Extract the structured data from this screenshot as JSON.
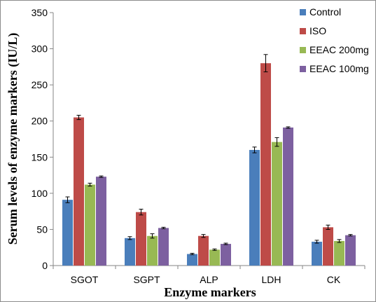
{
  "chart_data": {
    "type": "bar",
    "categories": [
      "SGOT",
      "SGPT",
      "ALP",
      "LDH",
      "CK"
    ],
    "series": [
      {
        "name": "Control",
        "color": "#4a7ebb",
        "values": [
          91,
          38,
          16,
          160,
          33
        ],
        "errors": [
          4,
          2,
          1,
          4,
          2
        ]
      },
      {
        "name": "ISO",
        "color": "#be4b48",
        "values": [
          205,
          74,
          41,
          280,
          53
        ],
        "errors": [
          3,
          4,
          2,
          12,
          3
        ]
      },
      {
        "name": "EEAC 200mg",
        "color": "#98b954",
        "values": [
          112,
          41,
          22,
          171,
          34
        ],
        "errors": [
          2,
          3,
          1,
          6,
          2
        ]
      },
      {
        "name": "EEAC 100mg",
        "color": "#7d60a0",
        "values": [
          123,
          52,
          30,
          191,
          42
        ],
        "errors": [
          1,
          1,
          1,
          1,
          1
        ]
      }
    ],
    "ylim": [
      0,
      350
    ],
    "yticks": [
      "0",
      "50",
      "100",
      "150",
      "200",
      "250",
      "300",
      "350"
    ],
    "xlabel": "Enzyme markers",
    "ylabel": "Serum levels of enzyme markers (IU/L)",
    "legend_position": "top-right",
    "grid": false
  }
}
